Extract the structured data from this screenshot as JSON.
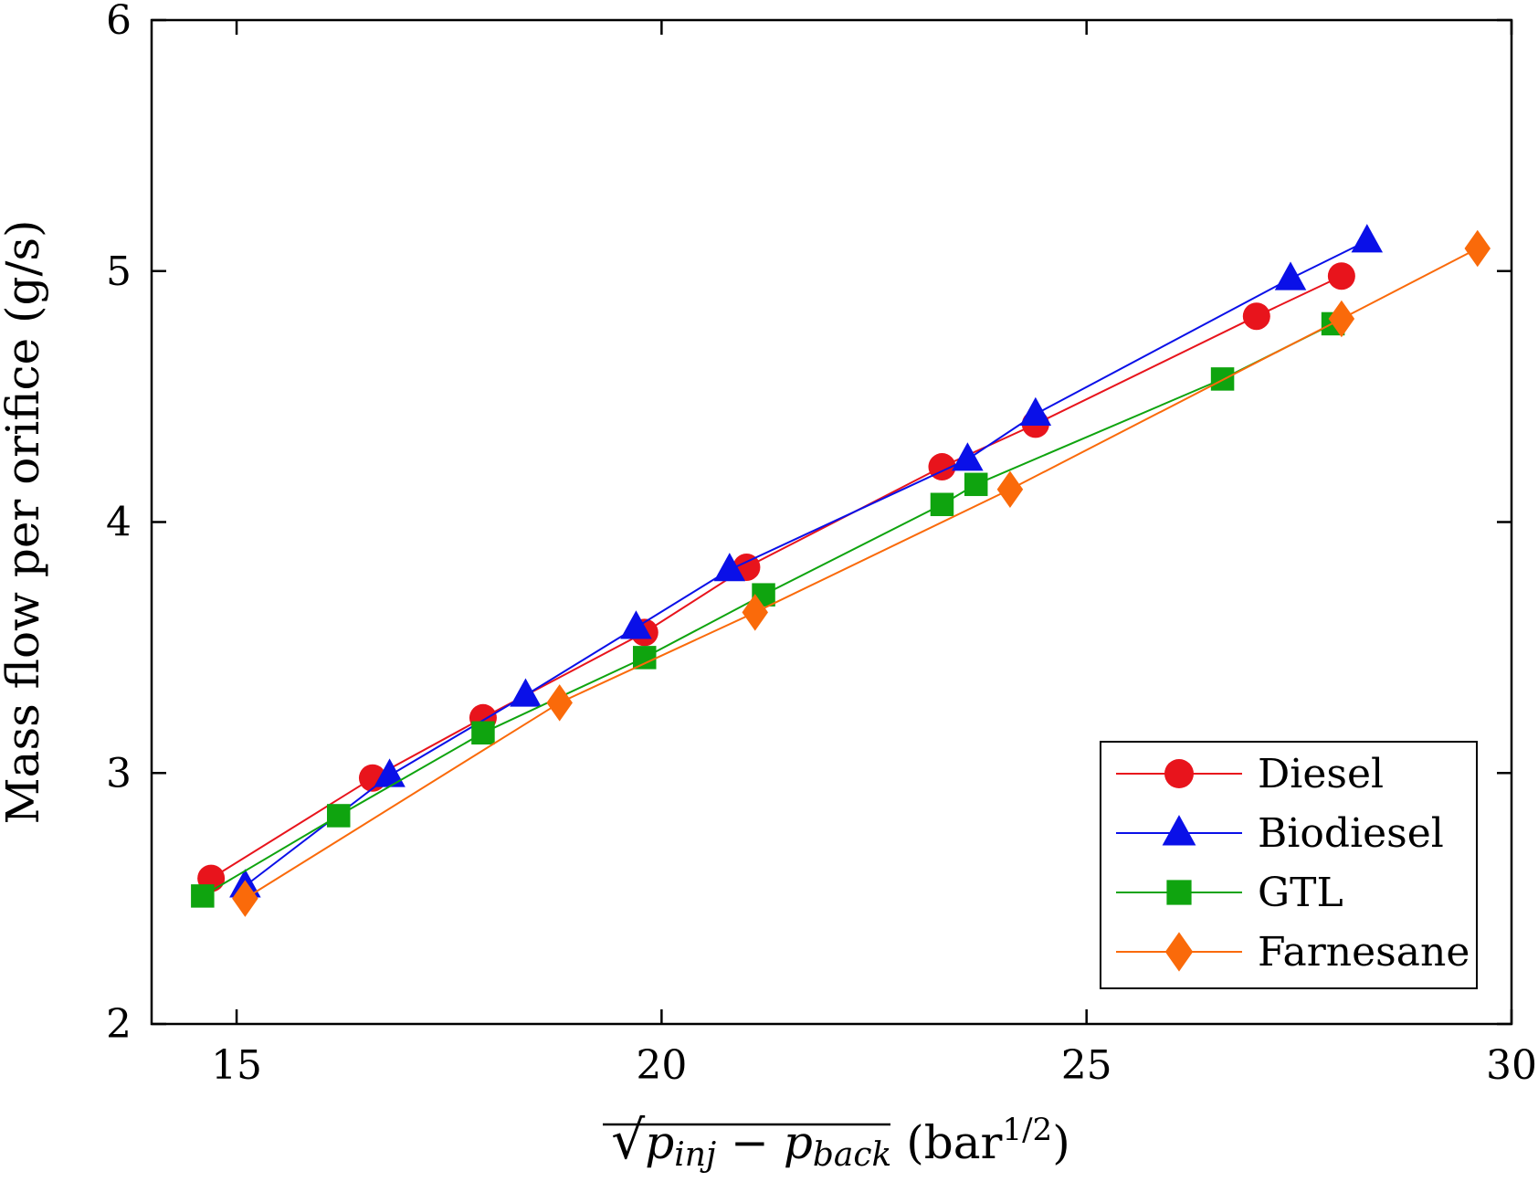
{
  "chart_data": {
    "type": "line",
    "title": "",
    "xlabel_parts": {
      "sqrt": "√",
      "p_inj_base": "p",
      "p_inj_sub": "inj",
      "minus": " − ",
      "p_back_base": "p",
      "p_back_sub": "back",
      "unit_open": " (bar",
      "unit_sup": "1/2",
      "unit_close": ")"
    },
    "ylabel": "Mass flow per orifice (g/s)",
    "xlim": [
      14,
      30
    ],
    "ylim": [
      2,
      6
    ],
    "xticks": [
      15,
      20,
      25,
      30
    ],
    "yticks": [
      2,
      3,
      4,
      5,
      6
    ],
    "grid": false,
    "legend_position": "bottom-right",
    "series": [
      {
        "name": "Diesel",
        "color": "#e8141c",
        "marker": "circle",
        "x": [
          14.7,
          16.6,
          17.9,
          19.8,
          21.0,
          23.3,
          24.4,
          27.0,
          28.0
        ],
        "y": [
          2.58,
          2.98,
          3.22,
          3.56,
          3.82,
          4.22,
          4.39,
          4.82,
          4.98
        ]
      },
      {
        "name": "Biodiesel",
        "color": "#0a10e8",
        "marker": "triangle",
        "x": [
          15.1,
          16.8,
          18.4,
          19.7,
          20.8,
          23.6,
          24.4,
          27.4,
          28.3
        ],
        "y": [
          2.55,
          2.99,
          3.31,
          3.58,
          3.81,
          4.25,
          4.43,
          4.97,
          5.12
        ]
      },
      {
        "name": "GTL",
        "color": "#0fa40f",
        "marker": "square",
        "x": [
          14.6,
          16.2,
          17.9,
          19.8,
          21.2,
          23.3,
          23.7,
          26.6,
          27.9
        ],
        "y": [
          2.51,
          2.83,
          3.16,
          3.46,
          3.71,
          4.07,
          4.15,
          4.57,
          4.79
        ]
      },
      {
        "name": "Farnesane",
        "color": "#fa6a0a",
        "marker": "diamond",
        "x": [
          15.1,
          18.8,
          21.1,
          24.1,
          28.0,
          29.6
        ],
        "y": [
          2.5,
          3.28,
          3.64,
          4.13,
          4.81,
          5.09
        ]
      }
    ]
  }
}
